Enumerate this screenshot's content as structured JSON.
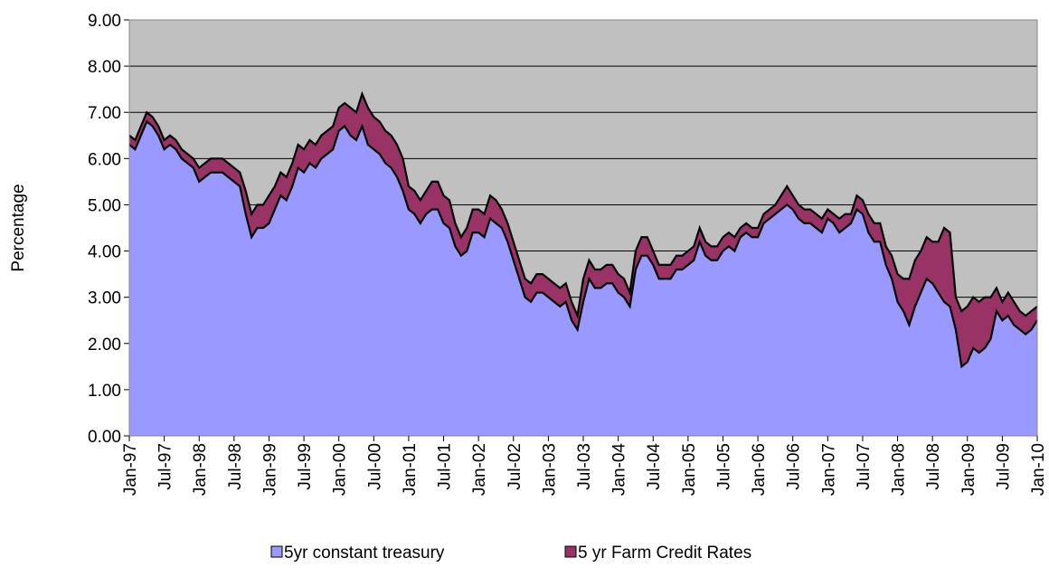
{
  "chart_data": {
    "type": "area",
    "y_label": "Percentage",
    "categories": [
      "Jan-97",
      null,
      null,
      null,
      null,
      null,
      "Jul-97",
      null,
      null,
      null,
      null,
      null,
      "Jan-98",
      null,
      null,
      null,
      null,
      null,
      "Jul-98",
      null,
      null,
      null,
      null,
      null,
      "Jan-99",
      null,
      null,
      null,
      null,
      null,
      "Jul-99",
      null,
      null,
      null,
      null,
      null,
      "Jan-00",
      null,
      null,
      null,
      null,
      null,
      "Jul-00",
      null,
      null,
      null,
      null,
      null,
      "Jan-01",
      null,
      null,
      null,
      null,
      null,
      "Jul-01",
      null,
      null,
      null,
      null,
      null,
      "Jan-02",
      null,
      null,
      null,
      null,
      null,
      "Jul-02",
      null,
      null,
      null,
      null,
      null,
      "Jan-03",
      null,
      null,
      null,
      null,
      null,
      "Jul-03",
      null,
      null,
      null,
      null,
      null,
      "Jan-04",
      null,
      null,
      null,
      null,
      null,
      "Jul-04",
      null,
      null,
      null,
      null,
      null,
      "Jan-05",
      null,
      null,
      null,
      null,
      null,
      "Jul-05",
      null,
      null,
      null,
      null,
      null,
      "Jan-06",
      null,
      null,
      null,
      null,
      null,
      "Jul-06",
      null,
      null,
      null,
      null,
      null,
      "Jan-07",
      null,
      null,
      null,
      null,
      null,
      "Jul-07",
      null,
      null,
      null,
      null,
      null,
      "Jan-08",
      null,
      null,
      null,
      null,
      null,
      "Jul-08",
      null,
      null,
      null,
      null,
      null,
      "Jan-09",
      null,
      null,
      null,
      null,
      null,
      "Jul-09",
      null,
      null,
      null,
      null,
      null,
      "Jan-10"
    ],
    "series": [
      {
        "name": "5yr constant treasury",
        "color": "#9999ff",
        "values": [
          6.3,
          6.2,
          6.5,
          6.8,
          6.7,
          6.5,
          6.2,
          6.3,
          6.2,
          6.0,
          5.9,
          5.8,
          5.5,
          5.6,
          5.7,
          5.7,
          5.7,
          5.6,
          5.5,
          5.4,
          4.8,
          4.3,
          4.5,
          4.5,
          4.6,
          4.9,
          5.2,
          5.1,
          5.4,
          5.8,
          5.7,
          5.9,
          5.8,
          6.0,
          6.1,
          6.2,
          6.6,
          6.7,
          6.5,
          6.4,
          6.7,
          6.3,
          6.2,
          6.1,
          5.9,
          5.8,
          5.6,
          5.3,
          4.9,
          4.8,
          4.6,
          4.8,
          4.9,
          4.9,
          4.6,
          4.5,
          4.1,
          3.9,
          4.0,
          4.4,
          4.4,
          4.3,
          4.7,
          4.6,
          4.5,
          4.2,
          3.8,
          3.4,
          3.0,
          2.9,
          3.1,
          3.1,
          3.0,
          2.9,
          2.8,
          2.9,
          2.5,
          2.3,
          2.9,
          3.4,
          3.2,
          3.2,
          3.3,
          3.3,
          3.1,
          3.0,
          2.8,
          3.6,
          3.9,
          3.9,
          3.7,
          3.4,
          3.4,
          3.4,
          3.6,
          3.6,
          3.7,
          3.8,
          4.2,
          3.9,
          3.8,
          3.8,
          4.0,
          4.1,
          4.0,
          4.3,
          4.4,
          4.3,
          4.3,
          4.6,
          4.7,
          4.8,
          4.9,
          5.0,
          4.9,
          4.7,
          4.6,
          4.6,
          4.5,
          4.4,
          4.7,
          4.6,
          4.4,
          4.5,
          4.6,
          4.9,
          4.8,
          4.4,
          4.2,
          4.2,
          3.7,
          3.4,
          2.9,
          2.7,
          2.4,
          2.8,
          3.1,
          3.4,
          3.3,
          3.1,
          2.9,
          2.8,
          2.3,
          1.5,
          1.6,
          1.9,
          1.8,
          1.9,
          2.1,
          2.7,
          2.5,
          2.6,
          2.4,
          2.3,
          2.2,
          2.3,
          2.5
        ]
      },
      {
        "name": "5 yr Farm Credit Rates",
        "color": "#993366",
        "values": [
          6.5,
          6.4,
          6.7,
          7.0,
          6.9,
          6.7,
          6.4,
          6.5,
          6.4,
          6.2,
          6.1,
          6.0,
          5.8,
          5.9,
          6.0,
          6.0,
          6.0,
          5.9,
          5.8,
          5.7,
          5.3,
          4.8,
          5.0,
          5.0,
          5.2,
          5.4,
          5.7,
          5.6,
          5.9,
          6.3,
          6.2,
          6.4,
          6.3,
          6.5,
          6.6,
          6.7,
          7.1,
          7.2,
          7.1,
          7.0,
          7.4,
          7.1,
          6.9,
          6.8,
          6.6,
          6.5,
          6.3,
          6.0,
          5.4,
          5.3,
          5.1,
          5.3,
          5.5,
          5.5,
          5.2,
          5.1,
          4.6,
          4.3,
          4.5,
          4.9,
          4.9,
          4.8,
          5.2,
          5.1,
          4.9,
          4.6,
          4.2,
          3.8,
          3.4,
          3.3,
          3.5,
          3.5,
          3.4,
          3.3,
          3.2,
          3.3,
          2.9,
          2.6,
          3.4,
          3.8,
          3.6,
          3.6,
          3.7,
          3.7,
          3.5,
          3.4,
          3.1,
          4.0,
          4.3,
          4.3,
          4.0,
          3.7,
          3.7,
          3.7,
          3.9,
          3.9,
          4.0,
          4.1,
          4.5,
          4.2,
          4.1,
          4.1,
          4.3,
          4.4,
          4.3,
          4.5,
          4.6,
          4.5,
          4.5,
          4.8,
          4.9,
          5.0,
          5.2,
          5.4,
          5.2,
          5.0,
          4.9,
          4.9,
          4.8,
          4.7,
          4.9,
          4.8,
          4.7,
          4.8,
          4.8,
          5.2,
          5.1,
          4.8,
          4.6,
          4.6,
          4.1,
          3.9,
          3.5,
          3.4,
          3.4,
          3.8,
          4.0,
          4.3,
          4.2,
          4.2,
          4.5,
          4.4,
          3.0,
          2.7,
          2.8,
          3.0,
          2.9,
          3.0,
          3.0,
          3.2,
          2.9,
          3.1,
          2.9,
          2.7,
          2.6,
          2.7,
          2.8
        ]
      }
    ],
    "ylim": [
      0,
      9
    ],
    "yticks": [
      {
        "value": 0,
        "label": "0.00"
      },
      {
        "value": 1,
        "label": "1.00"
      },
      {
        "value": 2,
        "label": "2.00"
      },
      {
        "value": 3,
        "label": "3.00"
      },
      {
        "value": 4,
        "label": "4.00"
      },
      {
        "value": 5,
        "label": "5.00"
      },
      {
        "value": 6,
        "label": "6.00"
      },
      {
        "value": 7,
        "label": "7.00"
      },
      {
        "value": 8,
        "label": "8.00"
      },
      {
        "value": 9,
        "label": "9.00"
      }
    ],
    "grid": true,
    "legend": "bottom",
    "plot_background": "#c0c0c0"
  }
}
